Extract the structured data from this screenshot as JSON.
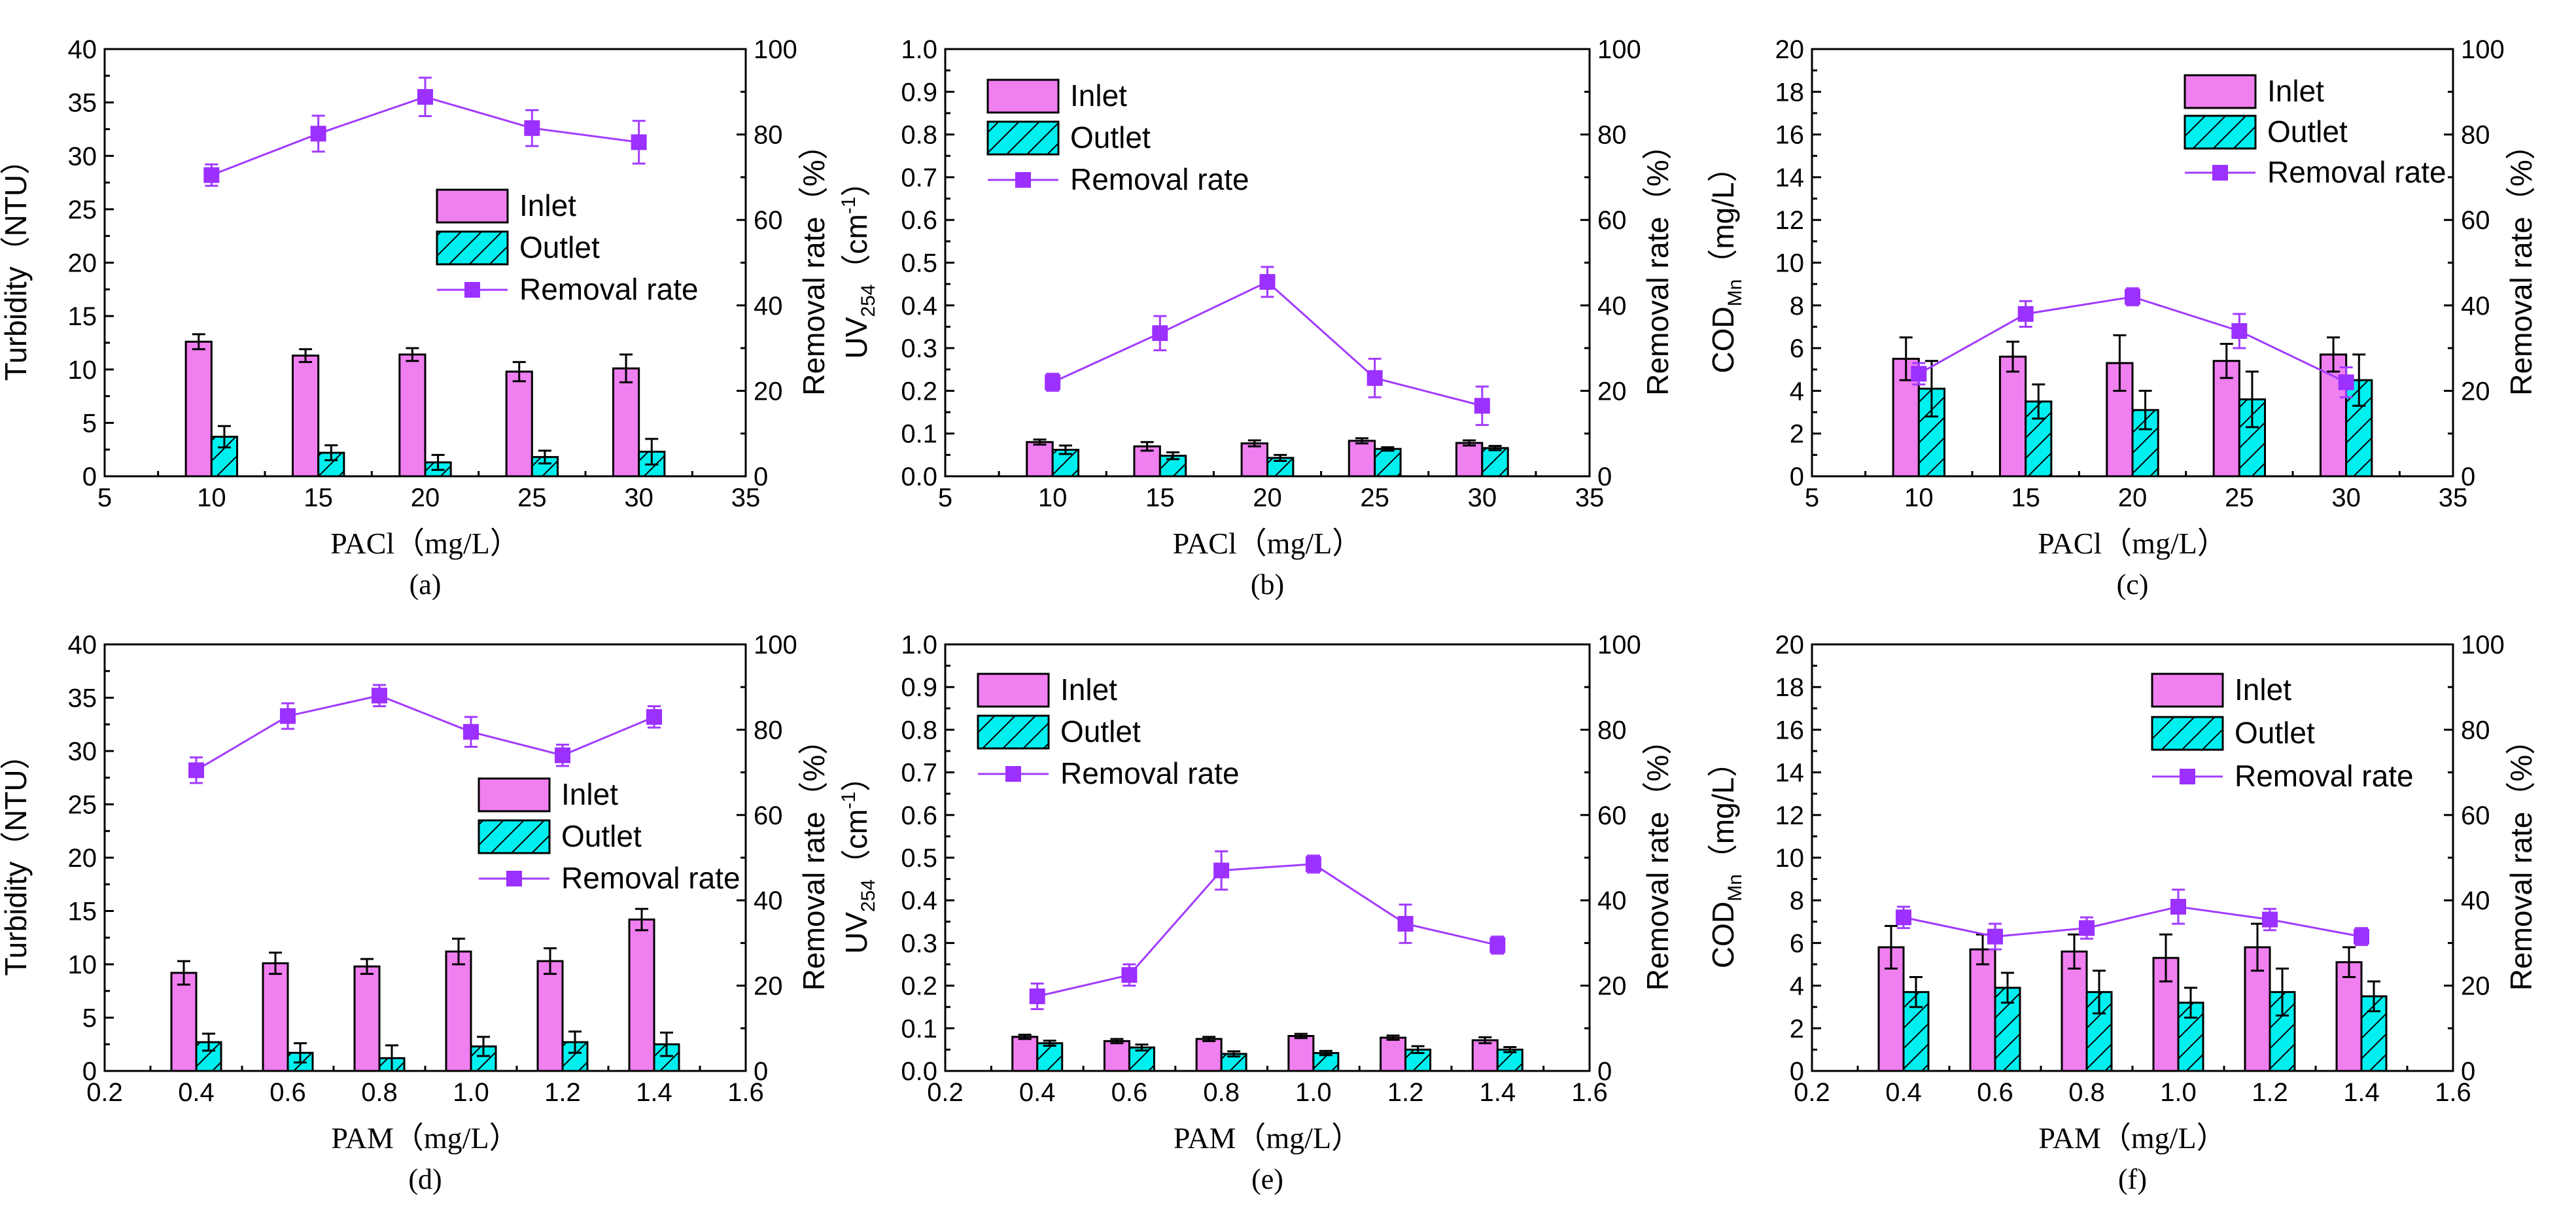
{
  "colors": {
    "inlet": "#f07ff0",
    "outlet": "#00f0f0",
    "removal": "#a23bff",
    "marker": "#9b30ff",
    "axis": "#000000"
  },
  "legend_labels": {
    "inlet": "Inlet",
    "outlet": "Outlet",
    "removal": "Removal rate"
  },
  "chart_data": [
    {
      "id": "a",
      "type": "bar+line",
      "panel_label": "(a)",
      "xlabel": "PACl（mg/L）",
      "ylabel": "Turbidity（NTU）",
      "ylabel_right": "Removal rate（%）",
      "xlim": [
        5,
        35
      ],
      "xticks": [
        "5",
        "10",
        "15",
        "20",
        "25",
        "30",
        "35"
      ],
      "ylim": [
        0,
        40
      ],
      "yticks": [
        "0",
        "5",
        "10",
        "15",
        "20",
        "25",
        "30",
        "35",
        "40"
      ],
      "ylim_right": [
        0,
        100
      ],
      "yticks_right": [
        "0",
        "20",
        "40",
        "60",
        "80",
        "100"
      ],
      "x": [
        10,
        15,
        20,
        25,
        30
      ],
      "series": [
        {
          "name": "Inlet",
          "axis": "left",
          "values": [
            12.6,
            11.3,
            11.4,
            9.8,
            10.1
          ],
          "errors": [
            0.7,
            0.6,
            0.6,
            0.9,
            1.3
          ]
        },
        {
          "name": "Outlet",
          "axis": "left",
          "values": [
            3.7,
            2.2,
            1.3,
            1.8,
            2.3
          ],
          "errors": [
            1.0,
            0.7,
            0.7,
            0.6,
            1.2
          ]
        },
        {
          "name": "Removal rate",
          "axis": "right",
          "values": [
            70.5,
            80.2,
            88.8,
            81.5,
            78.2
          ],
          "errors": [
            2.5,
            4.2,
            4.5,
            4.2,
            5.0
          ]
        }
      ]
    },
    {
      "id": "b",
      "type": "bar+line",
      "panel_label": "(b)",
      "xlabel": "PACl（mg/L）",
      "ylabel": "UV",
      "ylabel_sub": "254",
      "ylabel_unit": "（cm",
      "ylabel_sup": "-1",
      "ylabel_end": "）",
      "ylabel_right": "Removal rate（%）",
      "xlim": [
        5,
        35
      ],
      "xticks": [
        "5",
        "10",
        "15",
        "20",
        "25",
        "30",
        "35"
      ],
      "ylim": [
        0,
        1
      ],
      "yticks": [
        "0.0",
        "0.1",
        "0.2",
        "0.3",
        "0.4",
        "0.5",
        "0.6",
        "0.7",
        "0.8",
        "0.9",
        "1.0"
      ],
      "ylim_right": [
        0,
        100
      ],
      "yticks_right": [
        "0",
        "20",
        "40",
        "60",
        "80",
        "100"
      ],
      "x": [
        10,
        15,
        20,
        25,
        30
      ],
      "series": [
        {
          "name": "Inlet",
          "axis": "left",
          "values": [
            0.08,
            0.07,
            0.077,
            0.083,
            0.078
          ],
          "errors": [
            0.006,
            0.01,
            0.007,
            0.006,
            0.006
          ]
        },
        {
          "name": "Outlet",
          "axis": "left",
          "values": [
            0.062,
            0.048,
            0.043,
            0.064,
            0.066
          ],
          "errors": [
            0.01,
            0.008,
            0.007,
            0.004,
            0.005
          ]
        },
        {
          "name": "Removal rate",
          "axis": "right",
          "values": [
            22.0,
            33.5,
            45.5,
            23.0,
            16.5
          ],
          "errors": [
            2.0,
            4.0,
            3.5,
            4.5,
            4.5
          ]
        }
      ]
    },
    {
      "id": "c",
      "type": "bar+line",
      "panel_label": "(c)",
      "xlabel": "PACl（mg/L）",
      "ylabel": "COD",
      "ylabel_sub": "Mn",
      "ylabel_unit": "（mg/L）",
      "ylabel_right": "Removal rate（%）",
      "xlim": [
        5,
        35
      ],
      "xticks": [
        "5",
        "10",
        "15",
        "20",
        "25",
        "30",
        "35"
      ],
      "ylim": [
        0,
        20
      ],
      "yticks": [
        "0",
        "2",
        "4",
        "6",
        "8",
        "10",
        "12",
        "14",
        "16",
        "18",
        "20"
      ],
      "ylim_right": [
        0,
        100
      ],
      "yticks_right": [
        "0",
        "20",
        "40",
        "60",
        "80",
        "100"
      ],
      "x": [
        10,
        15,
        20,
        25,
        30
      ],
      "series": [
        {
          "name": "Inlet",
          "axis": "left",
          "values": [
            5.5,
            5.6,
            5.3,
            5.4,
            5.7
          ],
          "errors": [
            1.0,
            0.7,
            1.3,
            0.8,
            0.8
          ]
        },
        {
          "name": "Outlet",
          "axis": "left",
          "values": [
            4.1,
            3.5,
            3.1,
            3.6,
            4.5
          ],
          "errors": [
            1.3,
            0.8,
            0.9,
            1.3,
            1.2
          ]
        },
        {
          "name": "Removal rate",
          "axis": "right",
          "values": [
            24.0,
            38.0,
            42.0,
            34.0,
            22.0
          ],
          "errors": [
            2.5,
            3.0,
            2.0,
            4.0,
            3.5
          ]
        }
      ]
    },
    {
      "id": "d",
      "type": "bar+line",
      "panel_label": "(d)",
      "xlabel": "PAM（mg/L）",
      "ylabel": "Turbidity（NTU）",
      "ylabel_right": "Removal rate（%）",
      "xlim": [
        0.2,
        1.6
      ],
      "xticks": [
        "0.2",
        "0.4",
        "0.6",
        "0.8",
        "1.0",
        "1.2",
        "1.4",
        "1.6"
      ],
      "ylim": [
        0,
        40
      ],
      "yticks": [
        "0",
        "5",
        "10",
        "15",
        "20",
        "25",
        "30",
        "35",
        "40"
      ],
      "ylim_right": [
        0,
        100
      ],
      "yticks_right": [
        "0",
        "20",
        "40",
        "60",
        "80",
        "100"
      ],
      "x": [
        0.4,
        0.6,
        0.8,
        1.0,
        1.2,
        1.4
      ],
      "series": [
        {
          "name": "Inlet",
          "axis": "left",
          "values": [
            9.2,
            10.1,
            9.8,
            11.2,
            10.3,
            14.2
          ],
          "errors": [
            1.1,
            1.0,
            0.7,
            1.2,
            1.2,
            1.0
          ]
        },
        {
          "name": "Outlet",
          "axis": "left",
          "values": [
            2.7,
            1.7,
            1.2,
            2.3,
            2.7,
            2.5
          ],
          "errors": [
            0.8,
            0.9,
            1.2,
            0.9,
            1.0,
            1.1
          ]
        },
        {
          "name": "Removal rate",
          "axis": "right",
          "values": [
            70.5,
            83.2,
            88.0,
            79.5,
            74.0,
            83.0
          ],
          "errors": [
            3.0,
            3.0,
            2.5,
            3.5,
            2.5,
            2.5
          ]
        }
      ]
    },
    {
      "id": "e",
      "type": "bar+line",
      "panel_label": "(e)",
      "xlabel": "PAM（mg/L）",
      "ylabel": "UV",
      "ylabel_sub": "254",
      "ylabel_unit": "（cm",
      "ylabel_sup": "-1",
      "ylabel_end": "）",
      "ylabel_right": "Removal rate（%）",
      "xlim": [
        0.2,
        1.6
      ],
      "xticks": [
        "0.2",
        "0.4",
        "0.6",
        "0.8",
        "1.0",
        "1.2",
        "1.4",
        "1.6"
      ],
      "ylim": [
        0,
        1
      ],
      "yticks": [
        "0.0",
        "0.1",
        "0.2",
        "0.3",
        "0.4",
        "0.5",
        "0.6",
        "0.7",
        "0.8",
        "0.9",
        "1.0"
      ],
      "ylim_right": [
        0,
        100
      ],
      "yticks_right": [
        "0",
        "20",
        "40",
        "60",
        "80",
        "100"
      ],
      "x": [
        0.4,
        0.6,
        0.8,
        1.0,
        1.2,
        1.4
      ],
      "series": [
        {
          "name": "Inlet",
          "axis": "left",
          "values": [
            0.08,
            0.07,
            0.075,
            0.082,
            0.078,
            0.072
          ],
          "errors": [
            0.005,
            0.005,
            0.005,
            0.005,
            0.005,
            0.007
          ]
        },
        {
          "name": "Outlet",
          "axis": "left",
          "values": [
            0.065,
            0.055,
            0.04,
            0.042,
            0.05,
            0.05
          ],
          "errors": [
            0.006,
            0.007,
            0.006,
            0.005,
            0.008,
            0.006
          ]
        },
        {
          "name": "Removal rate",
          "axis": "right",
          "values": [
            17.5,
            22.5,
            47.0,
            48.5,
            34.5,
            29.5
          ],
          "errors": [
            3.0,
            2.5,
            4.5,
            2.0,
            4.5,
            2.0
          ]
        }
      ]
    },
    {
      "id": "f",
      "type": "bar+line",
      "panel_label": "(f)",
      "xlabel": "PAM（mg/L）",
      "ylabel": "COD",
      "ylabel_sub": "Mn",
      "ylabel_unit": "（mg/L）",
      "ylabel_right": "Removal rate（%）",
      "xlim": [
        0.2,
        1.6
      ],
      "xticks": [
        "0.2",
        "0.4",
        "0.6",
        "0.8",
        "1.0",
        "1.2",
        "1.4",
        "1.6"
      ],
      "ylim": [
        0,
        20
      ],
      "yticks": [
        "0",
        "2",
        "4",
        "6",
        "8",
        "10",
        "12",
        "14",
        "16",
        "18",
        "20"
      ],
      "ylim_right": [
        0,
        100
      ],
      "yticks_right": [
        "0",
        "20",
        "40",
        "60",
        "80",
        "100"
      ],
      "x": [
        0.4,
        0.6,
        0.8,
        1.0,
        1.2,
        1.4
      ],
      "series": [
        {
          "name": "Inlet",
          "axis": "left",
          "values": [
            5.8,
            5.7,
            5.6,
            5.3,
            5.8,
            5.1
          ],
          "errors": [
            1.0,
            0.7,
            0.8,
            1.1,
            1.1,
            0.7
          ]
        },
        {
          "name": "Outlet",
          "axis": "left",
          "values": [
            3.7,
            3.9,
            3.7,
            3.2,
            3.7,
            3.5
          ],
          "errors": [
            0.7,
            0.7,
            1.0,
            0.7,
            1.1,
            0.7
          ]
        },
        {
          "name": "Removal rate",
          "axis": "right",
          "values": [
            36.0,
            31.5,
            33.5,
            38.5,
            35.5,
            31.5
          ],
          "errors": [
            2.5,
            3.0,
            2.5,
            4.0,
            2.5,
            2.0
          ]
        }
      ]
    }
  ]
}
